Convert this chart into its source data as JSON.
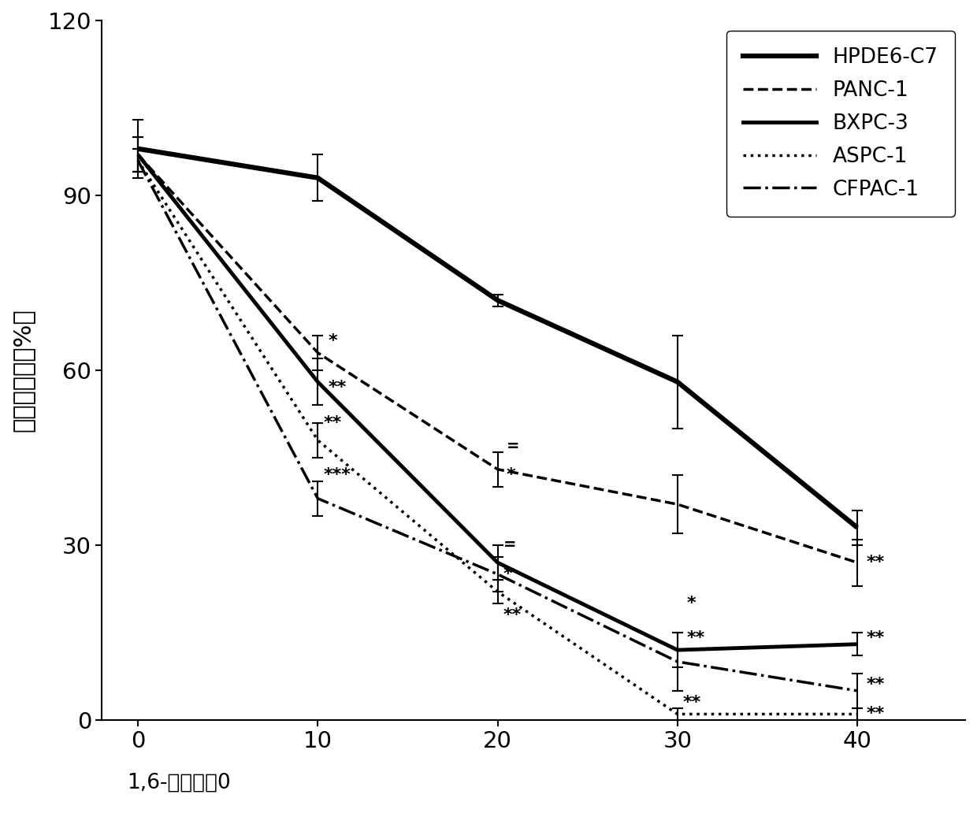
{
  "x": [
    0,
    10,
    20,
    30,
    40
  ],
  "HPDE6_C7": [
    98,
    93,
    72,
    58,
    33
  ],
  "HPDE6_C7_err": [
    5,
    4,
    1,
    8,
    3
  ],
  "PANC1": [
    97,
    63,
    43,
    37,
    27
  ],
  "PANC1_err": [
    3,
    3,
    3,
    5,
    4
  ],
  "BXPC3": [
    97,
    58,
    27,
    12,
    13
  ],
  "BXPC3_err": [
    3,
    4,
    3,
    3,
    2
  ],
  "ASPC1": [
    96,
    48,
    22,
    1,
    1
  ],
  "ASPC1_err": [
    2,
    3,
    2,
    1,
    1
  ],
  "CFPAC1": [
    96,
    38,
    25,
    10,
    5
  ],
  "CFPAC1_err": [
    2,
    3,
    3,
    5,
    3
  ],
  "ylim": [
    0,
    120
  ],
  "yticks": [
    0,
    30,
    60,
    90,
    120
  ],
  "background_color": "white"
}
